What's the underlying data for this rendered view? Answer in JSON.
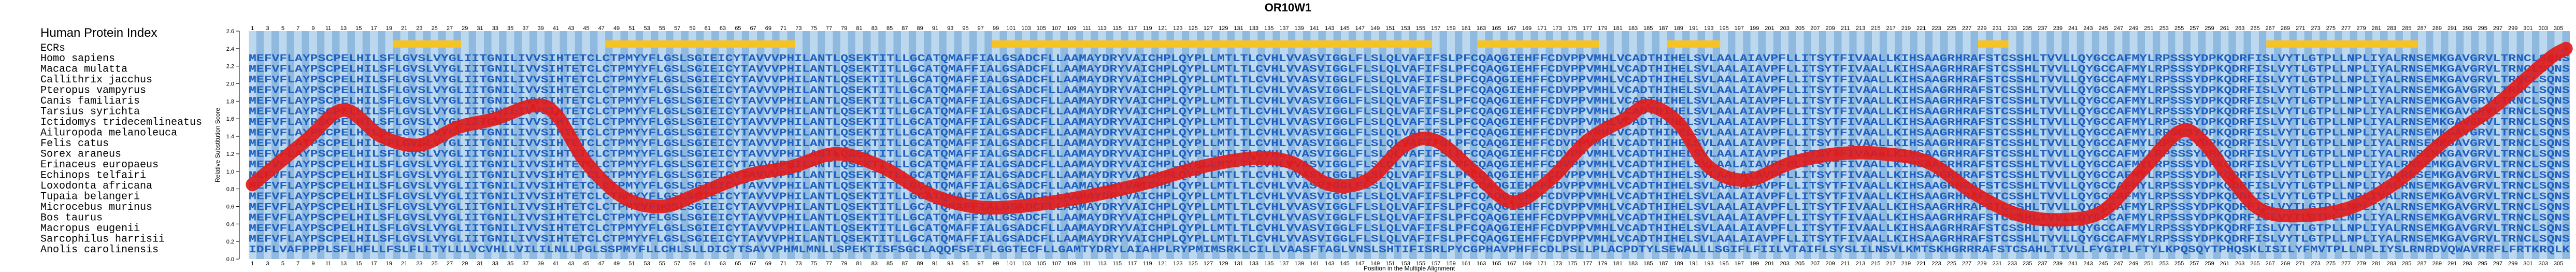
{
  "title": "OR10W1",
  "legend_title": "Human Protein Index",
  "colors": {
    "sequence_text": "#1f5fbf",
    "highlight_bar": "#f6c324",
    "track_light": "#bcd8ee",
    "track_dark": "#8fb9de",
    "curve": "#e21b1b",
    "curve_overlay": "#3b44b8"
  },
  "chart_data": {
    "type": "line",
    "xlabel": "Position in the Multiple Alignment",
    "ylabel": "Relative Substitution Score",
    "ylim": [
      0.0,
      2.6
    ],
    "yticks": [
      0.0,
      0.2,
      0.4,
      0.6,
      0.8,
      1.0,
      1.2,
      1.4,
      1.6,
      1.8,
      2.0,
      2.2,
      2.4,
      2.6
    ],
    "xlim": [
      1,
      306
    ],
    "x_tick_every": 2,
    "grid": false,
    "species_header": "ECRs",
    "species": [
      "Homo sapiens",
      "Macaca mulatta",
      "Callithrix jacchus",
      "Pteropus vampyrus",
      "Canis familiaris",
      "Tarsius syrichta",
      "Ictidomys tridecemlineatus",
      "Ailuropoda melanoleuca",
      "Felis catus",
      "Sorex araneus",
      "Erinaceus europaeus",
      "Echinops telfairi",
      "Loxodonta africana",
      "Tupaia belangeri",
      "Microcebus murinus",
      "Bos taurus",
      "Macropus eugenii",
      "Sarcophilus harrisii",
      "Anolis carolinensis"
    ],
    "sequences": [
      "MEFVFLAYPSCPELHILSFLGVSLVYGLIITGNILIVVSIHTETCLCTPMYYFLGSLSGIEICYTAVVVPHILANTLQSEKTITLLGCATQMAFFIALGSADCFLLAAMAYDRYVAICHPLQYPLLMTLTLCVHLVVASVIGGLFLSLQLVAFIFSLPFCQAQGIEHFFCDVPPVMHLVCADTHIHELSVLAALAIAVPFLLITSYTFIVAALLKIHSAAGRHRAFSTCSSHLTVVLLQYGCCAFMYLRPSSSYDPKQDRFISLVYTLGTPLLNPLIYALRNSEMKGAVGRVLTRNCLSQNS",
      "MEFVFLAYPSCPELHILSFLGVSLVYGLIITGNILIVVSIHTETCLCTPMYYFLGSLSGIEICYTAVVVPHILANTLQSEKTITLLGCATQMAFFIALGSADCFLLAAMAYDRYVAICHPLQYPLLMTLTLCVHLVVASVIGGLFLSLQLVAFIFSLPFCQAQGIEHFFCDVPPVMHLVCADTHIHELSVLAALAIAVPFLLITSYTFIVAALLKIHSAAGRHRAFSTCSSHLTVVLLQYGCCAFMYLRPSSSYDPKQDRFISLVYTLGTPLLNPLIYALRNSEMKGAVGRVLTRNCLSQNS",
      "MEFVFLAYPSCPELHILSFLGVSLVYGLIITGNILIVVSIHTETCLCTPMYYFLGSLSGIEICYTAVVVPHILANTLQSEKTITLLGCATQMAFFIALGSADCFLLAAMAYDRYVAICHPLQYPLLMTLTLCVHLVVASVIGGLFLSLQLVAFIFSLPFCQAQGIEHFFCDVPPVMHLVCADTHIHELSVLAALAIAVPFLLITSYTFIVAALLKIHSAAGRHRAFSTCSSHLTVVLLQYGCCAFMYLRPSSSYDPKQDRFISLVYTLGTPLLNPLIYALRNSEMKGAVGRVLTRNCLSQNS",
      "MEFVFLAYPSCPELHILSFLGVSLVYGLIITGNILIVVSIHTETCLCTPMYYFLGSLSGIEICYTAVVVPHILANTLQSEKTITLLGCATQMAFFIALGSADCFLLAAMAYDRYVAICHPLQYPLLMTLTLCVHLVVASVIGGLFLSLQLVAFIFSLPFCQAQGIEHFFCDVPPVMHLVCADTHIHELSVLAALAIAVPFLLITSYTFIVAALLKIHSAAGRHRAFSTCSSHLTVVLLQYGCCAFMYLRPSSSYDPKQDRFISLVYTLGTPLLNPLIYALRNSEMKGAVGRVLTRNCLSQNS",
      "MEFVFLAYPSCPELHILSFLGVSLVYGLIITGNILIVVSIHTETCLCTPMYYFLGSLSGIEICYTAVVVPHILANTLQSEKTITLLGCATQMAFFIALGSADCFLLAAMAYDRYVAICHPLQYPLLMTLTLCVHLVVASVIGGLFLSLQLVAFIFSLPFCQAQGIEHFFCDVPPVMHLVCADTHIHELSVLAALAIAVPFLLITSYTFIVAALLKIHSAAGRHRAFSTCSSHLTVVLLQYGCCAFMYLRPSSSYDPKQDRFISLVYTLGTPLLNPLIYALRNSEMKGAVGRVLTRNCLSQNS",
      "MEFVFLAYPSCPELHILSFLGVSLVYGLIITGNILIVVSIHTETCLCTPMYYFLGSLSGIEICYTAVVVPHILANTLQSEKTITLLGCATQMAFFIALGSADCFLLAAMAYDRYVAICHPLQYPLLMTLTLCVHLVVASVIGGLFLSLQLVAFIFSLPFCQAQGIEHFFCDVPPVMHLVCADTHIHELSVLAALAIAVPFLLITSYTFIVAALLKIHSAAGRHRAFSTCSSHLTVVLLQYGCCAFMYLRPSSSYDPKQDRFISLVYTLGTPLLNPLIYALRNSEMKGAVGRVLTRNCLSQNS",
      "MEFVFLAYPSCPELHILSFLGVSLVYGLIITGNILIVVSIHTETCLCTPMYYFLGSLSGIEICYTAVVVPHILANTLQSEKTITLLGCATQMAFFIALGSADCFLLAAMAYDRYVAICHPLQYPLLMTLTLCVHLVVASVIGGLFLSLQLVAFIFSLPFCQAQGIEHFFCDVPPVMHLVCADTHIHELSVLAALAIAVPFLLITSYTFIVAALLKIHSAAGRHRAFSTCSSHLTVVLLQYGCCAFMYLRPSSSYDPKQDRFISLVYTLGTPLLNPLIYALRNSEMKGAVGRVLTRNCLSQNS",
      "MEFVFLAYPSCPELHILSFLGVSLVYGLIITGNILIVVSIHTETCLCTPMYYFLGSLSGIEICYTAVVVPHILANTLQSEKTITLLGCATQMAFFIALGSADCFLLAAMAYDRYVAICHPLQYPLLMTLTLCVHLVVASVIGGLFLSLQLVAFIFSLPFCQAQGIEHFFCDVPPVMHLVCADTHIHELSVLAALAIAVPFLLITSYTFIVAALLKIHSAAGRHRAFSTCSSHLTVVLLQYGCCAFMYLRPSSSYDPKQDRFISLVYTLGTPLLNPLIYALRNSEMKGAVGRVLTRNCLSQNS",
      "MEFVFLAYPSCPELHILSFLGVSLVYGLIITGNILIVVSIHTETCLCTPMYYFLGSLSGIEICYTAVVVPHILANTLQSEKTITLLGCATQMAFFIALGSADCFLLAAMAYDRYVAICHPLQYPLLMTLTLCVHLVVASVIGGLFLSLQLVAFIFSLPFCQAQGIEHFFCDVPPVMHLVCADTHIHELSVLAALAIAVPFLLITSYTFIVAALLKIHSAAGRHRAFSTCSSHLTVVLLQYGCCAFMYLRPSSSYDPKQDRFISLVYTLGTPLLNPLIYALRNSEMKGAVGRVLTRNCLSQNS",
      "MEFVFLAYPSCPELHILSFLGVSLVYGLIITGNILIVVSIHTETCLCTPMYYFLGSLSGIEICYTAVVVPHILANTLQSEKTITLLGCATQMAFFIALGSADCFLLAAMAYDRYVAICHPLQYPLLMTLTLCVHLVVASVIGGLFLSLQLVAFIFSLPFCQAQGIEHFFCDVPPVMHLVCADTHIHELSVLAALAIAVPFLLITSYTFIVAALLKIHSAAGRHRAFSTCSSHLTVVLLQYGCCAFMYLRPSSSYDPKQDRFISLVYTLGTPLLNPLIYALRNSEMKGAVGRVLTRNCLSQNS",
      "MEFVFLAYPSCPELHILSFLGVSLVYGLIITGNILIVVSIHTETCLCTPMYYFLGSLSGIEICYTAVVVPHILANTLQSEKTITLLGCATQMAFFIALGSADCFLLAAMAYDRYVAICHPLQYPLLMTLTLCVHLVVASVIGGLFLSLQLVAFIFSLPFCQAQGIEHFFCDVPPVMHLVCADTHIHELSVLAALAIAVPFLLITSYTFIVAALLKIHSAAGRHRAFSTCSSHLTVVLLQYGCCAFMYLRPSSSYDPKQDRFISLVYTLGTPLLNPLIYALRNSEMKGAVGRVLTRNCLSQNS",
      "MEFVFLAYPSCPELHILSFLGVSLVYGLIITGNILIVVSIHTETCLCTPMYYFLGSLSGIEICYTAVVVPHILANTLQSEKTITLLGCATQMAFFIALGSADCFLLAAMAYDRYVAICHPLQYPLLMTLTLCVHLVVASVIGGLFLSLQLVAFIFSLPFCQAQGIEHFFCDVPPVMHLVCADTHIHELSVLAALAIAVPFLLITSYTFIVAALLKIHSAAGRHRAFSTCSSHLTVVLLQYGCCAFMYLRPSSSYDPKQDRFISLVYTLGTPLLNPLIYALRNSEMKGAVGRVLTRNCLSQNS",
      "MEFVFLAYPSCPELHILSFLGVSLVYGLIITGNILIVVSIHTETCLCTPMYYFLGSLSGIEICYTAVVVPHILANTLQSEKTITLLGCATQMAFFIALGSADCFLLAAMAYDRYVAICHPLQYPLLMTLTLCVHLVVASVIGGLFLSLQLVAFIFSLPFCQAQGIEHFFCDVPPVMHLVCADTHIHELSVLAALAIAVPFLLITSYTFIVAALLKIHSAAGRHRAFSTCSSHLTVVLLQYGCCAFMYLRPSSSYDPKQDRFISLVYTLGTPLLNPLIYALRNSEMKGAVGRVLTRNCLSQNS",
      "MEFVFLAYPSCPELHILSFLGVSLVYGLIITGNILIVVSIHTETCLCTPMYYFLGSLSGIEICYTAVVVPHILANTLQSEKTITLLGCATQMAFFIALGSADCFLLAAMAYDRYVAICHPLQYPLLMTLTLCVHLVVASVIGGLFLSLQLVAFIFSLPFCQAQGIEHFFCDVPPVMHLVCADTHIHELSVLAALAIAVPFLLITSYTFIVAALLKIHSAAGRHRAFSTCSSHLTVVLLQYGCCAFMYLRPSSSYDPKQDRFISLVYTLGTPLLNPLIYALRNSEMKGAVGRVLTRNCLSQNS",
      "MEFVFLAYPSCPELHILSFLGVSLVYGLIITGNILIVVSIHTETCLCTPMYYFLGSLSGIEICYTAVVVPHILANTLQSEKTITLLGCATQMAFFIALGSADCFLLAAMAYDRYVAICHPLQYPLLMTLTLCVHLVVASVIGGLFLSLQLVAFIFSLPFCQAQGIEHFFCDVPPVMHLVCADTHIHELSVLAALAIAVPFLLITSYTFIVAALLKIHSAAGRHRAFSTCSSHLTVVLLQYGCCAFMYLRPSSSYDPKQDRFISLVYTLGTPLLNPLIYALRNSEMKGAVGRVLTRNCLSQNS",
      "MEFVFLAYPSCPELHILSFLGVSLVYGLIITGNILIVVSIHTETCLCTPMYYFLGSLSGIEICYTAVVVPHILANTLQSEKTITLLGCATQMAFFIALGSADCFLLAAMAYDRYVAICHPLQYPLLMTLTLCVHLVVASVIGGLFLSLQLVAFIFSLPFCQAQGIEHFFCDVPPVMHLVCADTHIHELSVLAALAIAVPFLLITSYTFIVAALLKIHSAAGRHRAFSTCSSHLTVVLLQYGCCAFMYLRPSSSYDPKQDRFISLVYTLGTPLLNPLIYALRNSEMKGAVGRVLTRNCLSQNS",
      "MEFVFLAYPSCPELHILSFLGVSLVYGLIITGNILIVVSIHTETCLCTPMYYFLGSLSGIEICYTAVVVPHILANTLQSEKTITLLGCATQMAFFIALGSADCFLLAAMAYDRYVAICHPLQYPLLMTLTLCVHLVVASVIGGLFLSLQLVAFIFSLPFCQAQGIEHFFCDVPPVMHLVCADTHIHELSVLAALAIAVPFLLITSYTFIVAALLKIHSAAGRHRAFSTCSSHLTVVLLQYGCCAFMYLRPSSSYDPKQDRFISLVYTLGTPLLNPLIYALRNSEMKGAVGRVLTRNCLSQNS",
      "MEFVFLAYPSCPELHILSFLGVSLVYGLIITGNILIVVSIHTETCLCTPMYYFLGSLSGIEICYTAVVVPHILANTLQSEKTITLLGCATQMAFFIALGSADCFLLAAMAYDRYVAICHPLQYPLLMTLTLCVHLVVASVIGGLFLSLQLVAFIFSLPFCQAQGIEHFFCDVPPVMHLVCADTHIHELSVLAALAIAVPFLLITSYTFIVAALLKIHSAAGRHRAFSTCSSHLTVVLLQYGCCAFMYLRPSSSYDPKQDRFISLVYTLGTPLLNPLIYALRNSEMKGAVGRVLTRNCLSQNS",
      "IDFLVAFPPPLSFLHFLLFSLFLLTYLLLVCVHLLVILILNLLPGLSSPMYFLLCHLSLLDICYTSAVVPHMLMNLLSPEKTISFSGCLAQQFSFIFLGGTECFLLGAMTYDRYLAIAHPLRYPMIMSRKLCILLVAASFTAGLVNSLSHTIFISRLPYCGPHAVPHFFCDLPSLLPLACPDTYLSEWALLLSGIFLFIILVTAIFLSYSLILNSVLKMTSKHGRRRAFSTCSAHLTIVLLFYGIPLFTYLKPQSQYTPHQSKLISILYFMVTPLLNPLIYSLRNRDVQWAVRRFLFRTKRQLK"
    ],
    "highlight_bars": [
      [
        20,
        28
      ],
      [
        48,
        72
      ],
      [
        99,
        147
      ],
      [
        148,
        156
      ],
      [
        163,
        178
      ],
      [
        188,
        194
      ],
      [
        229,
        232
      ],
      [
        267,
        286
      ]
    ],
    "series": [
      {
        "x": [
          1,
          8,
          13,
          18,
          23,
          28,
          33,
          38,
          41,
          45,
          50,
          55,
          60,
          66,
          72,
          78,
          84,
          90,
          96,
          102,
          110,
          118,
          126,
          133,
          138,
          143,
          148,
          153,
          157,
          162,
          167,
          172,
          177,
          182,
          185,
          189,
          193,
          198,
          204,
          210,
          216,
          222,
          228,
          234,
          240,
          245,
          250,
          255,
          258,
          262,
          266,
          272,
          278,
          284,
          290,
          296,
          300,
          304,
          306
        ],
        "y": [
          0.85,
          1.35,
          1.7,
          1.4,
          1.3,
          1.5,
          1.6,
          1.75,
          1.65,
          1.1,
          0.7,
          0.6,
          0.75,
          0.95,
          1.05,
          1.2,
          1.05,
          0.75,
          0.6,
          0.6,
          0.7,
          0.85,
          1.05,
          1.15,
          1.1,
          0.85,
          0.9,
          1.3,
          1.35,
          1.0,
          0.65,
          0.9,
          1.35,
          1.6,
          1.75,
          1.55,
          1.05,
          0.9,
          1.1,
          1.2,
          1.2,
          1.1,
          0.75,
          0.5,
          0.45,
          0.55,
          1.0,
          1.45,
          1.35,
          0.9,
          0.55,
          0.5,
          0.6,
          0.9,
          1.35,
          1.7,
          2.0,
          2.3,
          2.4
        ]
      }
    ]
  }
}
